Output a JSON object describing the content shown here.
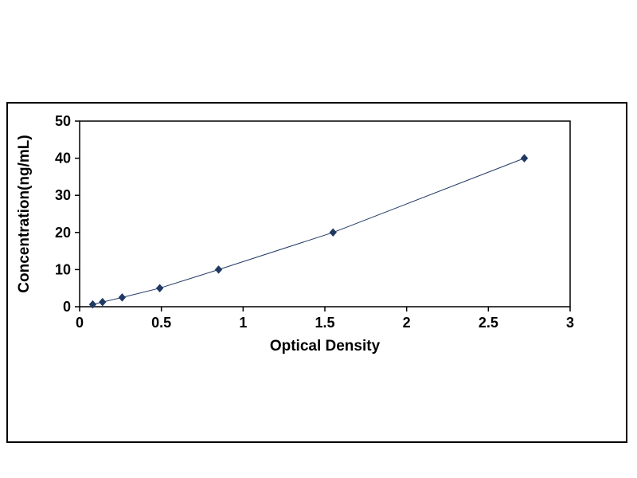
{
  "chart_data": {
    "type": "line",
    "title": "",
    "xlabel": "Optical Density",
    "ylabel": "Concentration(ng/mL)",
    "x": [
      0.08,
      0.14,
      0.26,
      0.49,
      0.85,
      1.55,
      2.72
    ],
    "y": [
      0.625,
      1.25,
      2.5,
      5,
      10,
      20,
      40
    ],
    "xlim": [
      0,
      3
    ],
    "ylim": [
      0,
      50
    ],
    "xticks": [
      0,
      0.5,
      1,
      1.5,
      2,
      2.5,
      3
    ],
    "yticks": [
      0,
      10,
      20,
      30,
      40,
      50
    ],
    "grid": false,
    "legend": "none",
    "marker": "diamond",
    "colors": {
      "marker": "#1F3864",
      "line": "#1F3864",
      "axis": "#000000",
      "text": "#000000",
      "frame_border": "#000000",
      "background": "#ffffff"
    }
  }
}
